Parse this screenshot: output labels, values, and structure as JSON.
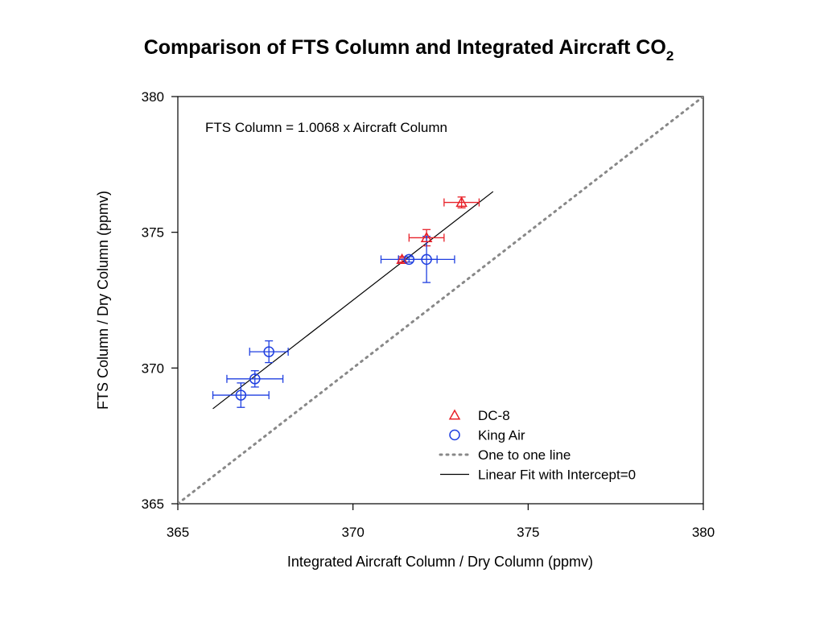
{
  "chart_data": {
    "type": "scatter",
    "title": "Comparison of FTS Column and Integrated Aircraft CO",
    "title_subscript": "2",
    "xlabel": "Integrated Aircraft Column / Dry Column (ppmv)",
    "ylabel": "FTS Column / Dry Column (ppmv)",
    "xlim": [
      365,
      380
    ],
    "ylim": [
      365,
      380
    ],
    "xticks": [
      365,
      370,
      375,
      380
    ],
    "yticks": [
      365,
      370,
      375,
      380
    ],
    "grid": false,
    "annotation": "FTS Column = 1.0068 x Aircraft Column",
    "legend_position": "bottom-right",
    "series": [
      {
        "name": "DC-8",
        "marker": "triangle",
        "color": "#e8222a",
        "points": [
          {
            "x": 371.4,
            "y": 374.0,
            "xerr": 0.1,
            "yerr": 0.1
          },
          {
            "x": 372.1,
            "y": 374.8,
            "xerr": 0.5,
            "yerr": 0.3
          },
          {
            "x": 373.1,
            "y": 376.1,
            "xerr": 0.5,
            "yerr": 0.2
          }
        ]
      },
      {
        "name": "King Air",
        "marker": "circle",
        "color": "#1f3fe0",
        "points": [
          {
            "x": 366.8,
            "y": 369.0,
            "xerr": 0.8,
            "yerr": 0.45
          },
          {
            "x": 367.2,
            "y": 369.6,
            "xerr": 0.8,
            "yerr": 0.3
          },
          {
            "x": 367.6,
            "y": 370.6,
            "xerr": 0.55,
            "yerr": 0.4
          },
          {
            "x": 371.6,
            "y": 374.0,
            "xerr": 0.8,
            "yerr": 0.1
          },
          {
            "x": 372.1,
            "y": 374.0,
            "xerr": 0.8,
            "yerr": 0.85
          }
        ]
      },
      {
        "name": "One to one line",
        "style": "dotted",
        "color": "#888888",
        "x": [
          365,
          380
        ],
        "y": [
          365,
          380
        ]
      },
      {
        "name": "Linear Fit with Intercept=0",
        "style": "solid",
        "color": "#000000",
        "slope": 1.0068,
        "x": [
          366.0,
          374.0
        ],
        "y": [
          368.5,
          376.5
        ]
      }
    ]
  }
}
